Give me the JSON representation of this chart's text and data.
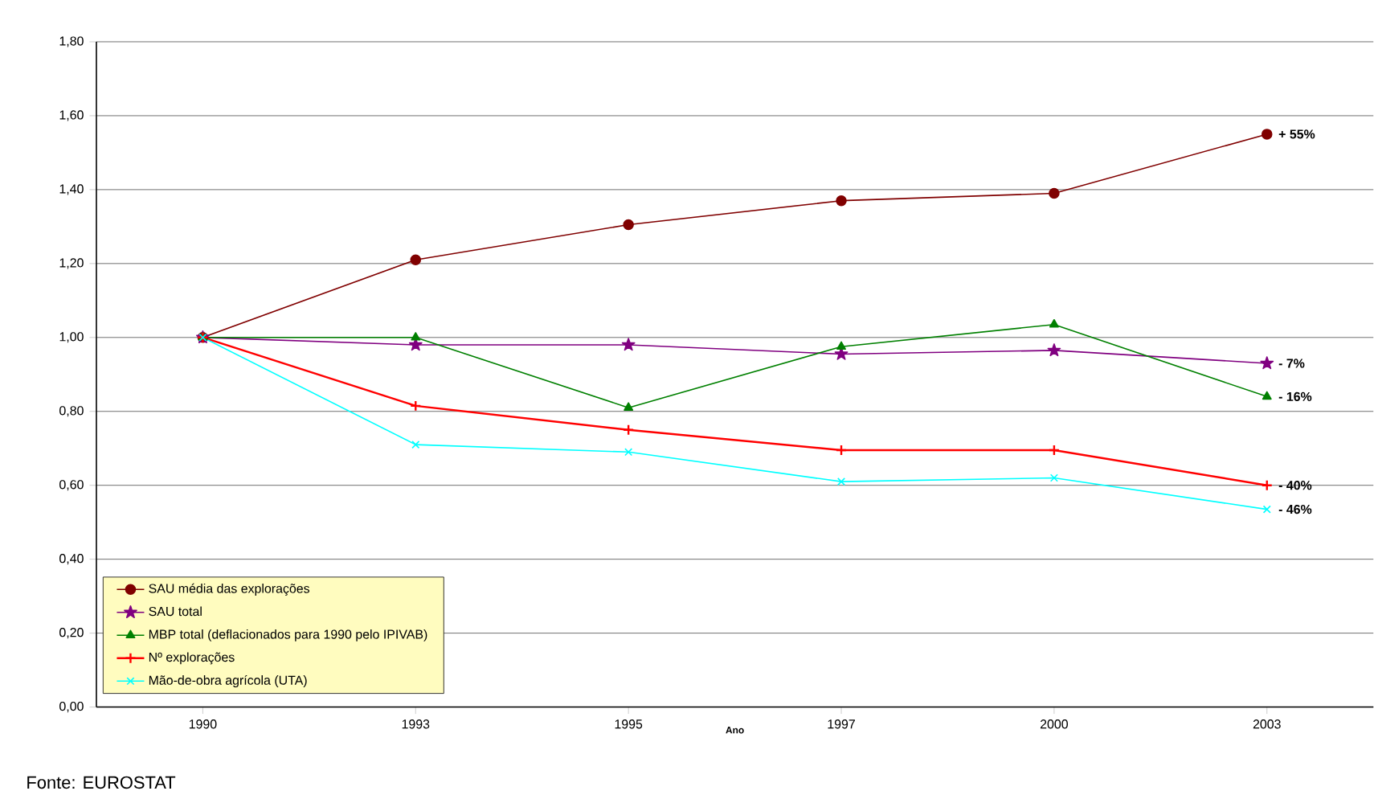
{
  "chart_data": {
    "type": "line",
    "xlabel": "Ano",
    "categories": [
      "1990",
      "1993",
      "1995",
      "1997",
      "2000",
      "2003"
    ],
    "series": [
      {
        "name": "SAU média das explorações",
        "color": "#800000",
        "marker": "circle",
        "values": [
          1.0,
          1.21,
          1.305,
          1.37,
          1.39,
          1.55
        ]
      },
      {
        "name": "SAU total",
        "color": "#800080",
        "marker": "star",
        "values": [
          1.0,
          0.98,
          0.98,
          0.955,
          0.965,
          0.93
        ]
      },
      {
        "name": "MBP total (deflacionados para 1990 pelo IPIVAB)",
        "color": "#008000",
        "marker": "triangle",
        "values": [
          1.0,
          1.0,
          0.81,
          0.975,
          1.035,
          0.84
        ]
      },
      {
        "name": "Nº explorações",
        "color": "#ff0000",
        "marker": "plus",
        "values": [
          1.0,
          0.815,
          0.75,
          0.695,
          0.695,
          0.6
        ]
      },
      {
        "name": "Mão-de-obra agrícola (UTA)",
        "color": "#00ffff",
        "marker": "cross",
        "values": [
          1.0,
          0.71,
          0.69,
          0.61,
          0.62,
          0.535
        ]
      }
    ],
    "ylim": [
      0,
      1.8
    ],
    "yticks": [
      {
        "value": 0,
        "label": "0,00"
      },
      {
        "value": 0.2,
        "label": "0,20"
      },
      {
        "value": 0.4,
        "label": "0,40"
      },
      {
        "value": 0.6,
        "label": "0,60"
      },
      {
        "value": 0.8,
        "label": "0,80"
      },
      {
        "value": 1.0,
        "label": "1,00"
      },
      {
        "value": 1.2,
        "label": "1,20"
      },
      {
        "value": 1.4,
        "label": "1,40"
      },
      {
        "value": 1.6,
        "label": "1,60"
      },
      {
        "value": 1.8,
        "label": "1,80"
      }
    ],
    "grid": "y",
    "legend": "bottom left",
    "line_style": "solid",
    "annotations": [
      {
        "text": "+ 55%",
        "x": "2003",
        "y": 1.55
      },
      {
        "text": "- 7%",
        "x": "2003",
        "y": 0.93
      },
      {
        "text": "- 16%",
        "x": "2003",
        "y": 0.84
      },
      {
        "text": "- 40%",
        "x": "2003",
        "y": 0.6
      },
      {
        "text": "- 46%",
        "x": "2003",
        "y": 0.535
      },
      "Fonte: EUROSTAT"
    ]
  }
}
